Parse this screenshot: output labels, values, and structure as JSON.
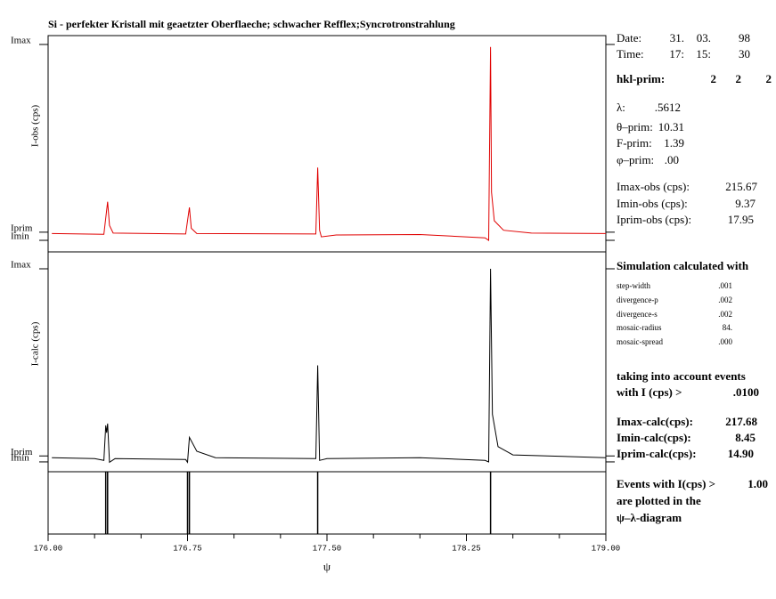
{
  "title": "Si - perfekter Kristall mit geaetzter Oberflaeche; schwacher Refflex;Syncrotronstrahlung",
  "chart_data": [
    {
      "type": "line",
      "ylabel": "I-obs (cps)",
      "xlim": [
        176,
        179
      ],
      "ylim": [
        -2.8,
        225
      ],
      "yticks": [
        {
          "value": 215.67,
          "label": "Imax"
        },
        {
          "value": 17.95,
          "label": "Iprim"
        },
        {
          "value": 9.37,
          "label": "Imin"
        }
      ],
      "series": [
        {
          "color": "#e00000",
          "x": [
            176.02,
            176.3,
            176.32,
            176.33,
            176.35,
            176.74,
            176.76,
            176.77,
            176.8,
            177.44,
            177.45,
            177.46,
            177.47,
            177.55,
            178.0,
            178.35,
            178.37,
            178.38,
            178.385,
            178.4,
            178.45,
            178.6,
            179.0
          ],
          "values": [
            16.5,
            15.8,
            50,
            25,
            17,
            16,
            44,
            22,
            16.5,
            16,
            86,
            20,
            13,
            15,
            15.5,
            12,
            9.4,
            213,
            60,
            30,
            20,
            17,
            16.5
          ]
        }
      ]
    },
    {
      "type": "line",
      "ylabel": "I-calc (cps)",
      "xlim": [
        176,
        179
      ],
      "ylim": [
        -2.2,
        236
      ],
      "yticks": [
        {
          "value": 217.68,
          "label": "Imax"
        },
        {
          "value": 14.9,
          "label": "Iprim"
        },
        {
          "value": 8.45,
          "label": "Imin"
        }
      ],
      "series": [
        {
          "color": "#000000",
          "x": [
            176.02,
            176.25,
            176.3,
            176.31,
            176.315,
            176.32,
            176.33,
            176.36,
            176.74,
            176.75,
            176.76,
            176.8,
            176.9,
            177.44,
            177.45,
            177.46,
            177.5,
            178.0,
            178.35,
            178.37,
            178.38,
            178.39,
            178.42,
            178.5,
            179.0
          ],
          "values": [
            13,
            12,
            10,
            48,
            40,
            50,
            8,
            12,
            11,
            8,
            35,
            20,
            13,
            12,
            113,
            10,
            12,
            13,
            10,
            8.45,
            217.68,
            60,
            25,
            16,
            13
          ]
        }
      ]
    },
    {
      "type": "events",
      "xlabel": "ψ",
      "xlim": [
        176,
        179
      ],
      "xticks": [
        {
          "value": 176,
          "label": "176.00"
        },
        {
          "value": 176.75,
          "label": "176.75"
        },
        {
          "value": 177.5,
          "label": "177.50"
        },
        {
          "value": 178.25,
          "label": "178.25"
        },
        {
          "value": 179,
          "label": "179.00"
        }
      ],
      "x": [
        176.31,
        176.32,
        176.75,
        176.76,
        177.45,
        178.38
      ]
    }
  ],
  "info": [
    [
      "Date:",
      "31.",
      "03.",
      "98"
    ],
    [
      "Time:",
      "17:",
      "15:",
      "30"
    ],
    [
      "hkl-prim:",
      "2",
      "2",
      "2"
    ],
    [
      "λ:",
      ".5612"
    ],
    [
      "θ–prim:",
      "10.31"
    ],
    [
      "F-prim:",
      "1.39"
    ],
    [
      "φ–prim:",
      ".00"
    ],
    [
      "Imax-obs (cps):",
      "215.67"
    ],
    [
      "Imin-obs (cps):",
      "9.37"
    ],
    [
      "Iprim-obs (cps):",
      "17.95"
    ],
    [
      "Simulation calculated with"
    ],
    [
      "step-width",
      ".001"
    ],
    [
      "divergence-p",
      ".002"
    ],
    [
      "divergence-s",
      ".002"
    ],
    [
      "mosaic-radius",
      "84."
    ],
    [
      "mosaic-spread",
      ".000"
    ],
    [
      "taking into account events"
    ],
    [
      "with I (cps) >",
      ".0100"
    ],
    [
      "Imax-calc(cps):",
      "217.68"
    ],
    [
      "Imin-calc(cps):",
      "8.45"
    ],
    [
      "Iprim-calc(cps):",
      "14.90"
    ],
    [
      "Events with I(cps) >",
      "1.00"
    ],
    [
      "are plotted in the"
    ],
    [
      "ψ–λ-diagram"
    ]
  ]
}
